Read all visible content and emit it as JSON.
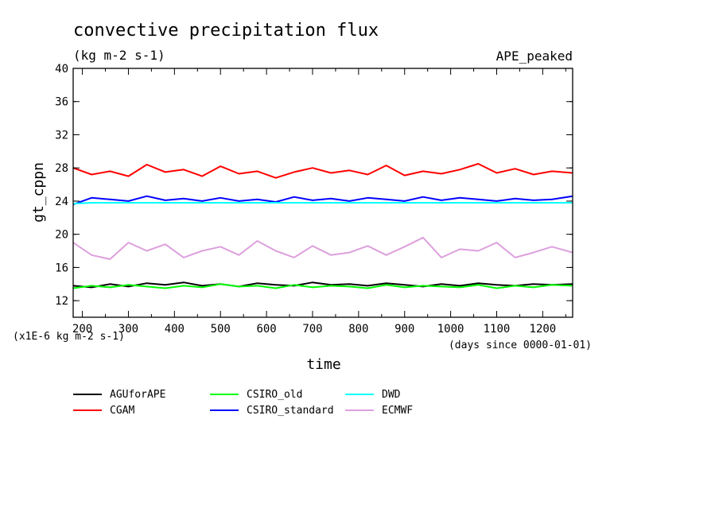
{
  "chart_data": {
    "type": "line",
    "title": "convective precipitation flux",
    "units": "(kg m-2 s-1)",
    "experiment": "APE_peaked",
    "xlabel": "time",
    "x_units_note": "(days since 0000-01-01)",
    "ylabel": "gt_cppn",
    "y_scale_note": "(x1E-6 kg m-2 s-1)",
    "xlim": [
      180,
      1265
    ],
    "ylim": [
      10,
      40
    ],
    "x_ticks": [
      200,
      300,
      400,
      500,
      600,
      700,
      800,
      900,
      1000,
      1100,
      1200
    ],
    "y_ticks": [
      12,
      16,
      20,
      24,
      28,
      32,
      36,
      40
    ],
    "grid": false,
    "legend_position": "bottom",
    "x": [
      180,
      220,
      260,
      300,
      340,
      380,
      420,
      460,
      500,
      540,
      580,
      620,
      660,
      700,
      740,
      780,
      820,
      860,
      900,
      940,
      980,
      1020,
      1060,
      1100,
      1140,
      1180,
      1220,
      1265
    ],
    "series": [
      {
        "name": "AGUforAPE",
        "color": "#000000",
        "values": [
          13.8,
          13.6,
          14.0,
          13.7,
          14.1,
          13.9,
          14.2,
          13.8,
          14.0,
          13.7,
          14.1,
          13.9,
          13.8,
          14.2,
          13.9,
          14.0,
          13.8,
          14.1,
          13.9,
          13.7,
          14.0,
          13.8,
          14.1,
          13.9,
          13.8,
          14.0,
          13.9,
          14.0
        ]
      },
      {
        "name": "CGAM",
        "color": "#ff0000",
        "values": [
          28.0,
          27.2,
          27.6,
          27.0,
          28.4,
          27.5,
          27.8,
          27.0,
          28.2,
          27.3,
          27.6,
          26.8,
          27.5,
          28.0,
          27.4,
          27.7,
          27.2,
          28.3,
          27.1,
          27.6,
          27.3,
          27.8,
          28.5,
          27.4,
          27.9,
          27.2,
          27.6,
          27.4
        ]
      },
      {
        "name": "CSIRO_old",
        "color": "#00ff00",
        "values": [
          13.5,
          13.8,
          13.6,
          13.9,
          13.7,
          13.5,
          13.8,
          13.6,
          14.0,
          13.7,
          13.8,
          13.5,
          13.9,
          13.6,
          13.8,
          13.7,
          13.5,
          13.9,
          13.6,
          13.8,
          13.7,
          13.6,
          13.9,
          13.5,
          13.8,
          13.6,
          13.9,
          13.8
        ]
      },
      {
        "name": "CSIRO_standard",
        "color": "#0000ff",
        "values": [
          23.6,
          24.4,
          24.2,
          24.0,
          24.6,
          24.1,
          24.3,
          24.0,
          24.4,
          24.0,
          24.2,
          23.9,
          24.5,
          24.1,
          24.3,
          24.0,
          24.4,
          24.2,
          24.0,
          24.5,
          24.1,
          24.4,
          24.2,
          24.0,
          24.3,
          24.1,
          24.2,
          24.6
        ]
      },
      {
        "name": "DWD",
        "color": "#00ffff",
        "values": [
          23.7,
          23.8,
          23.8,
          23.8,
          23.8,
          23.8,
          23.8,
          23.8,
          23.8,
          23.8,
          23.8,
          23.8,
          23.8,
          23.8,
          23.8,
          23.8,
          23.8,
          23.8,
          23.8,
          23.8,
          23.8,
          23.8,
          23.8,
          23.8,
          23.8,
          23.8,
          23.8,
          23.8
        ]
      },
      {
        "name": "ECMWF",
        "color": "#dda0dd",
        "values": [
          19.0,
          17.5,
          17.0,
          19.0,
          18.0,
          18.8,
          17.2,
          18.0,
          18.5,
          17.5,
          19.2,
          18.0,
          17.2,
          18.6,
          17.5,
          17.8,
          18.6,
          17.5,
          18.5,
          19.6,
          17.2,
          18.2,
          18.0,
          19.0,
          17.2,
          17.8,
          18.5,
          17.8
        ]
      }
    ]
  }
}
